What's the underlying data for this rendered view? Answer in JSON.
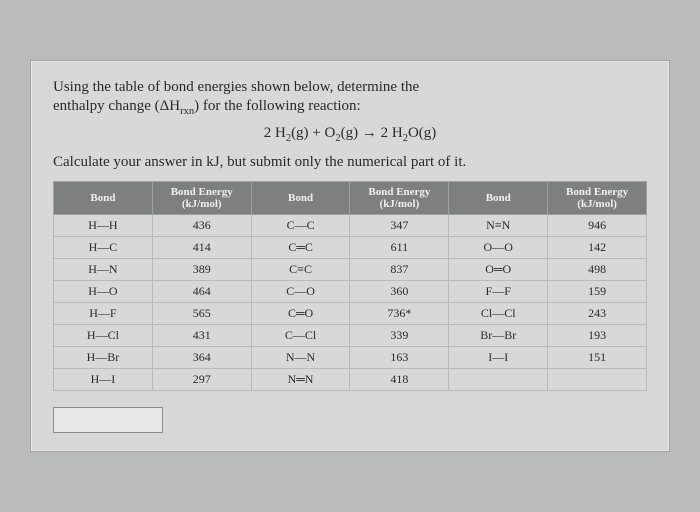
{
  "prompt": {
    "line1": "Using the table of bond energies shown below, determine the",
    "line2_a": "enthalpy change (ΔH",
    "line2_sub": "rxn",
    "line2_b": ")  for the following reaction:",
    "line3": "Calculate your answer in kJ, but submit only the numerical part of it."
  },
  "equation": {
    "a": "2 H",
    "a_sub": "2",
    "a_tail": "(g)  +  O",
    "b_sub": "2",
    "b_tail": "(g)  →  2 H",
    "c_sub": "2",
    "c_tail": "O(g)"
  },
  "headers": {
    "bond": "Bond",
    "energy_a": "Bond Energy",
    "energy_b": "(kJ/mol)"
  },
  "rows": [
    {
      "b1": "H—H",
      "e1": "436",
      "b2": "C—C",
      "e2": "347",
      "b3": "N≡N",
      "e3": "946"
    },
    {
      "b1": "H—C",
      "e1": "414",
      "b2": "C═C",
      "e2": "611",
      "b3": "O—O",
      "e3": "142"
    },
    {
      "b1": "H—N",
      "e1": "389",
      "b2": "C≡C",
      "e2": "837",
      "b3": "O═O",
      "e3": "498"
    },
    {
      "b1": "H—O",
      "e1": "464",
      "b2": "C—O",
      "e2": "360",
      "b3": "F—F",
      "e3": "159"
    },
    {
      "b1": "H—F",
      "e1": "565",
      "b2": "C═O",
      "e2": "736*",
      "b3": "Cl—Cl",
      "e3": "243"
    },
    {
      "b1": "H—Cl",
      "e1": "431",
      "b2": "C—Cl",
      "e2": "339",
      "b3": "Br—Br",
      "e3": "193"
    },
    {
      "b1": "H—Br",
      "e1": "364",
      "b2": "N—N",
      "e2": "163",
      "b3": "I—I",
      "e3": "151"
    },
    {
      "b1": "H—I",
      "e1": "297",
      "b2": "N═N",
      "e2": "418",
      "b3": "",
      "e3": ""
    }
  ],
  "style": {
    "background": "#b8bdba",
    "page_bg": "#d6d9d6",
    "header_bg": "#7c8180",
    "header_fg": "#eef0ee",
    "border": "#b8bcb8",
    "font_body": 15,
    "font_table": 12
  }
}
